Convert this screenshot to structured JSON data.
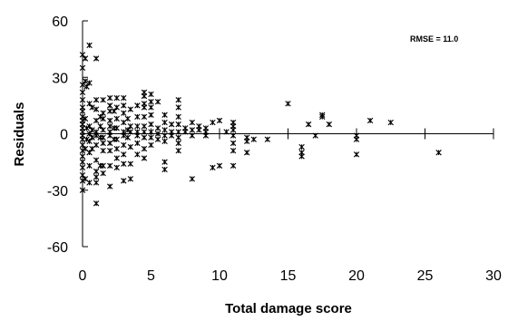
{
  "chart_data": {
    "type": "scatter",
    "title": "",
    "xlabel": "Total damage score",
    "ylabel": "Residuals",
    "annotation": "RMSE = 11.0",
    "xlim": [
      0,
      30
    ],
    "ylim": [
      -60,
      60
    ],
    "xticks": [
      0,
      5,
      10,
      15,
      20,
      25,
      30
    ],
    "yticks": [
      60,
      30,
      0,
      -30,
      -60
    ],
    "zero_line": true,
    "grid": false,
    "marker": "asterisk",
    "points": [
      [
        0,
        42
      ],
      [
        0,
        35
      ],
      [
        0,
        26
      ],
      [
        0,
        22
      ],
      [
        0,
        18
      ],
      [
        0,
        14
      ],
      [
        0,
        12
      ],
      [
        0,
        9
      ],
      [
        0,
        7
      ],
      [
        0,
        5
      ],
      [
        0,
        3
      ],
      [
        0,
        1
      ],
      [
        0,
        -1
      ],
      [
        0,
        -3
      ],
      [
        0,
        -6
      ],
      [
        0,
        -9
      ],
      [
        0,
        -12
      ],
      [
        0,
        -15
      ],
      [
        0,
        -18
      ],
      [
        0,
        -22
      ],
      [
        0,
        -25
      ],
      [
        0,
        -30
      ],
      [
        0.2,
        40
      ],
      [
        0.2,
        28
      ],
      [
        0.2,
        8
      ],
      [
        0.2,
        -8
      ],
      [
        0.2,
        -24
      ],
      [
        0.3,
        25
      ],
      [
        0.3,
        3
      ],
      [
        0.3,
        -3
      ],
      [
        0.5,
        47
      ],
      [
        0.5,
        27
      ],
      [
        0.5,
        16
      ],
      [
        0.5,
        4
      ],
      [
        0.5,
        0
      ],
      [
        0.5,
        -4
      ],
      [
        0.5,
        -10
      ],
      [
        0.5,
        -17
      ],
      [
        0.5,
        -26
      ],
      [
        0.7,
        14
      ],
      [
        0.7,
        2
      ],
      [
        0.7,
        -2
      ],
      [
        0.7,
        -8
      ],
      [
        1,
        40
      ],
      [
        1,
        18
      ],
      [
        1,
        13
      ],
      [
        1,
        7
      ],
      [
        1,
        1
      ],
      [
        1,
        -1
      ],
      [
        1,
        -6
      ],
      [
        1,
        -14
      ],
      [
        1,
        -20
      ],
      [
        1,
        -23
      ],
      [
        1,
        -26
      ],
      [
        1,
        -37
      ],
      [
        1.3,
        9
      ],
      [
        1.3,
        4
      ],
      [
        1.3,
        -2
      ],
      [
        1.3,
        -17
      ],
      [
        1.5,
        18
      ],
      [
        1.5,
        11
      ],
      [
        1.5,
        8
      ],
      [
        1.5,
        2
      ],
      [
        1.5,
        -2
      ],
      [
        1.5,
        -5
      ],
      [
        1.5,
        -9
      ],
      [
        1.5,
        -17
      ],
      [
        1.5,
        -21
      ],
      [
        2,
        19
      ],
      [
        2,
        15
      ],
      [
        2,
        12
      ],
      [
        2,
        7
      ],
      [
        2,
        4
      ],
      [
        2,
        1
      ],
      [
        2,
        -1
      ],
      [
        2,
        -5
      ],
      [
        2,
        -9
      ],
      [
        2,
        -17
      ],
      [
        2,
        -28
      ],
      [
        2.3,
        12
      ],
      [
        2.3,
        3
      ],
      [
        2.3,
        -3
      ],
      [
        2.5,
        19
      ],
      [
        2.5,
        14
      ],
      [
        2.5,
        8
      ],
      [
        2.5,
        3
      ],
      [
        2.5,
        -3
      ],
      [
        2.5,
        -8
      ],
      [
        2.5,
        -13
      ],
      [
        2.5,
        -18
      ],
      [
        3,
        19
      ],
      [
        3,
        15
      ],
      [
        3,
        11
      ],
      [
        3,
        6
      ],
      [
        3,
        1
      ],
      [
        3,
        -1
      ],
      [
        3,
        -6
      ],
      [
        3,
        -11
      ],
      [
        3,
        -16
      ],
      [
        3,
        -25
      ],
      [
        3.3,
        8
      ],
      [
        3.3,
        2
      ],
      [
        3.3,
        -2
      ],
      [
        3.5,
        13
      ],
      [
        3.5,
        4
      ],
      [
        3.5,
        1
      ],
      [
        3.5,
        -7
      ],
      [
        3.5,
        -16
      ],
      [
        3.5,
        -24
      ],
      [
        4,
        15
      ],
      [
        4,
        9
      ],
      [
        4,
        4
      ],
      [
        4,
        1
      ],
      [
        4,
        -1
      ],
      [
        4,
        -5
      ],
      [
        4,
        -11
      ],
      [
        4.5,
        22
      ],
      [
        4.5,
        20
      ],
      [
        4.5,
        16
      ],
      [
        4.5,
        14
      ],
      [
        4.5,
        9
      ],
      [
        4.5,
        4
      ],
      [
        4.5,
        1
      ],
      [
        4.5,
        -2
      ],
      [
        4.5,
        -8
      ],
      [
        4.5,
        -13
      ],
      [
        5,
        21
      ],
      [
        5,
        17
      ],
      [
        5,
        14
      ],
      [
        5,
        10
      ],
      [
        5,
        5
      ],
      [
        5,
        1
      ],
      [
        5,
        -2
      ],
      [
        5,
        -6
      ],
      [
        5.5,
        17
      ],
      [
        5.5,
        3
      ],
      [
        5.5,
        0
      ],
      [
        5.5,
        -3
      ],
      [
        6,
        10
      ],
      [
        6,
        6
      ],
      [
        6,
        2
      ],
      [
        6,
        -1
      ],
      [
        6,
        -4
      ],
      [
        6,
        -15
      ],
      [
        6,
        -19
      ],
      [
        6.5,
        5
      ],
      [
        6.5,
        1
      ],
      [
        6.5,
        -1
      ],
      [
        7,
        18
      ],
      [
        7,
        14
      ],
      [
        7,
        9
      ],
      [
        7,
        5
      ],
      [
        7,
        1
      ],
      [
        7,
        -2
      ],
      [
        7,
        -5
      ],
      [
        7,
        -9
      ],
      [
        7.5,
        3
      ],
      [
        7.5,
        1
      ],
      [
        8,
        6
      ],
      [
        8,
        2
      ],
      [
        8,
        -1
      ],
      [
        8,
        -24
      ],
      [
        8.5,
        4
      ],
      [
        8.5,
        2
      ],
      [
        9,
        3
      ],
      [
        9,
        1
      ],
      [
        9,
        -1
      ],
      [
        9.5,
        6
      ],
      [
        9.5,
        -18
      ],
      [
        10,
        7
      ],
      [
        10,
        -17
      ],
      [
        10.5,
        1
      ],
      [
        11,
        6
      ],
      [
        11,
        4
      ],
      [
        11,
        2
      ],
      [
        11,
        -1
      ],
      [
        11,
        -5
      ],
      [
        11,
        -9
      ],
      [
        11,
        -17
      ],
      [
        12,
        -2
      ],
      [
        12,
        -4
      ],
      [
        12,
        -10
      ],
      [
        12.5,
        -3
      ],
      [
        13.5,
        -3
      ],
      [
        15,
        16
      ],
      [
        16,
        -7
      ],
      [
        16,
        -10
      ],
      [
        16,
        -12
      ],
      [
        16.5,
        5
      ],
      [
        17,
        -1
      ],
      [
        17.5,
        9
      ],
      [
        17.5,
        10
      ],
      [
        18,
        5
      ],
      [
        20,
        -1
      ],
      [
        20,
        -3
      ],
      [
        20,
        -11
      ],
      [
        21,
        7
      ],
      [
        22.5,
        6
      ],
      [
        26,
        -10
      ]
    ]
  }
}
